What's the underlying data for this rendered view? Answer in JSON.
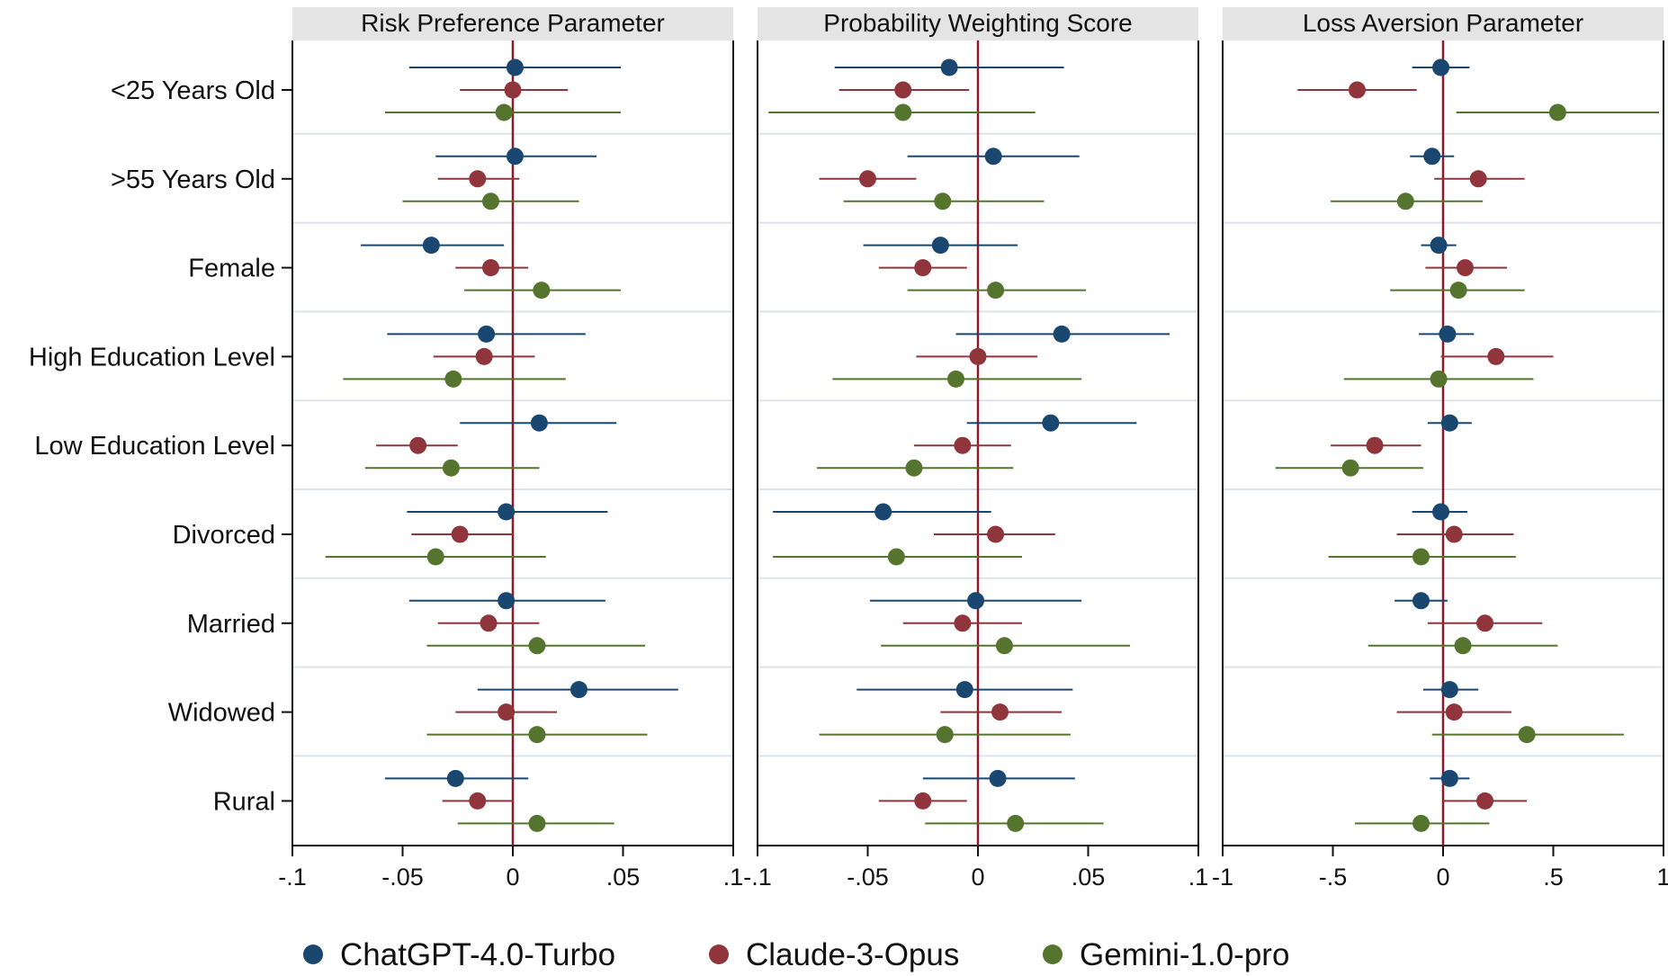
{
  "chart_data": {
    "type": "scatter",
    "subtype": "coefficient plot with confidence intervals",
    "categories": [
      "<25 Years Old",
      ">55 Years Old",
      "Female",
      "High Education Level",
      "Low Education Level",
      "Divorced",
      "Married",
      "Widowed",
      "Rural"
    ],
    "legend": {
      "position": "bottom",
      "entries": [
        {
          "name": "ChatGPT-4.0-Turbo",
          "color": "#1a476f"
        },
        {
          "name": "Claude-3-Opus",
          "color": "#90353b"
        },
        {
          "name": "Gemini-1.0-pro",
          "color": "#55752f"
        }
      ]
    },
    "reference_line": {
      "value": 0,
      "color": "#8b1a2b"
    },
    "panels": [
      {
        "title": "Risk Preference Parameter",
        "xlim": [
          -0.1,
          0.1
        ],
        "ticks": [
          -0.1,
          -0.05,
          0,
          0.05,
          0.1
        ],
        "tick_labels": [
          "-.1",
          "-.05",
          "0",
          ".05",
          ".1"
        ],
        "series": [
          {
            "name": "ChatGPT-4.0-Turbo",
            "estimates": [
              0.001,
              0.001,
              -0.037,
              -0.012,
              0.012,
              -0.003,
              -0.003,
              0.03,
              -0.026
            ],
            "ci_low": [
              -0.047,
              -0.035,
              -0.069,
              -0.057,
              -0.024,
              -0.048,
              -0.047,
              -0.016,
              -0.058
            ],
            "ci_high": [
              0.049,
              0.038,
              -0.004,
              0.033,
              0.047,
              0.043,
              0.042,
              0.075,
              0.007
            ]
          },
          {
            "name": "Claude-3-Opus",
            "estimates": [
              0.0,
              -0.016,
              -0.01,
              -0.013,
              -0.043,
              -0.024,
              -0.011,
              -0.003,
              -0.016
            ],
            "ci_low": [
              -0.024,
              -0.034,
              -0.026,
              -0.036,
              -0.062,
              -0.046,
              -0.034,
              -0.026,
              -0.032
            ],
            "ci_high": [
              0.025,
              0.003,
              0.007,
              0.01,
              -0.025,
              0.0,
              0.012,
              0.02,
              0.0
            ]
          },
          {
            "name": "Gemini-1.0-pro",
            "estimates": [
              -0.004,
              -0.01,
              0.013,
              -0.027,
              -0.028,
              -0.035,
              0.011,
              0.011,
              0.011
            ],
            "ci_low": [
              -0.058,
              -0.05,
              -0.022,
              -0.077,
              -0.067,
              -0.085,
              -0.039,
              -0.039,
              -0.025
            ],
            "ci_high": [
              0.049,
              0.03,
              0.049,
              0.024,
              0.012,
              0.015,
              0.06,
              0.061,
              0.046
            ]
          }
        ]
      },
      {
        "title": "Probability Weighting Score",
        "xlim": [
          -0.1,
          0.1
        ],
        "ticks": [
          -0.1,
          -0.05,
          0,
          0.05,
          0.1
        ],
        "tick_labels": [
          "-.1",
          "-.05",
          "0",
          ".05",
          ".1"
        ],
        "series": [
          {
            "name": "ChatGPT-4.0-Turbo",
            "estimates": [
              -0.013,
              0.007,
              -0.017,
              0.038,
              0.033,
              -0.043,
              -0.001,
              -0.006,
              0.009
            ],
            "ci_low": [
              -0.065,
              -0.032,
              -0.052,
              -0.01,
              -0.005,
              -0.093,
              -0.049,
              -0.055,
              -0.025
            ],
            "ci_high": [
              0.039,
              0.046,
              0.018,
              0.087,
              0.072,
              0.006,
              0.047,
              0.043,
              0.044
            ]
          },
          {
            "name": "Claude-3-Opus",
            "estimates": [
              -0.034,
              -0.05,
              -0.025,
              0.0,
              -0.007,
              0.008,
              -0.007,
              0.01,
              -0.025
            ],
            "ci_low": [
              -0.063,
              -0.072,
              -0.045,
              -0.028,
              -0.029,
              -0.02,
              -0.034,
              -0.017,
              -0.045
            ],
            "ci_high": [
              -0.004,
              -0.028,
              -0.005,
              0.027,
              0.015,
              0.035,
              0.02,
              0.038,
              -0.005
            ]
          },
          {
            "name": "Gemini-1.0-pro",
            "estimates": [
              -0.034,
              -0.016,
              0.008,
              -0.01,
              -0.029,
              -0.037,
              0.012,
              -0.015,
              0.017
            ],
            "ci_low": [
              -0.095,
              -0.061,
              -0.032,
              -0.066,
              -0.073,
              -0.093,
              -0.044,
              -0.072,
              -0.024
            ],
            "ci_high": [
              0.026,
              0.03,
              0.049,
              0.047,
              0.016,
              0.02,
              0.069,
              0.042,
              0.057
            ]
          }
        ]
      },
      {
        "title": "Loss Aversion Parameter",
        "xlim": [
          -1,
          1
        ],
        "ticks": [
          -1,
          -0.5,
          0,
          0.5,
          1
        ],
        "tick_labels": [
          "-1",
          "-.5",
          "0",
          ".5",
          "1"
        ],
        "series": [
          {
            "name": "ChatGPT-4.0-Turbo",
            "estimates": [
              -0.01,
              -0.05,
              -0.02,
              0.02,
              0.03,
              -0.01,
              -0.1,
              0.03,
              0.03
            ],
            "ci_low": [
              -0.14,
              -0.15,
              -0.1,
              -0.11,
              -0.07,
              -0.14,
              -0.22,
              -0.09,
              -0.06
            ],
            "ci_high": [
              0.12,
              0.05,
              0.06,
              0.14,
              0.13,
              0.11,
              0.02,
              0.16,
              0.12
            ]
          },
          {
            "name": "Claude-3-Opus",
            "estimates": [
              -0.39,
              0.16,
              0.1,
              0.24,
              -0.31,
              0.05,
              0.19,
              0.05,
              0.19
            ],
            "ci_low": [
              -0.66,
              -0.04,
              -0.08,
              -0.01,
              -0.51,
              -0.21,
              -0.07,
              -0.21,
              0.0
            ],
            "ci_high": [
              -0.12,
              0.37,
              0.29,
              0.5,
              -0.1,
              0.32,
              0.45,
              0.31,
              0.38
            ]
          },
          {
            "name": "Gemini-1.0-pro",
            "estimates": [
              0.52,
              -0.17,
              0.07,
              -0.02,
              -0.42,
              -0.1,
              0.09,
              0.38,
              -0.1
            ],
            "ci_low": [
              0.06,
              -0.51,
              -0.24,
              -0.45,
              -0.76,
              -0.52,
              -0.34,
              -0.05,
              -0.4
            ],
            "ci_high": [
              0.98,
              0.18,
              0.37,
              0.41,
              -0.09,
              0.33,
              0.52,
              0.82,
              0.21
            ]
          }
        ]
      }
    ]
  }
}
